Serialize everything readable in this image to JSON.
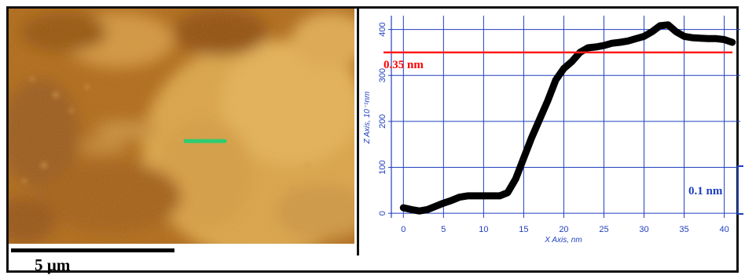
{
  "image": {
    "scale_bar_label": "5 µm",
    "line_color": "#2ecc71"
  },
  "chart_data": {
    "type": "line",
    "title": "",
    "xlabel": "X Axis, nm",
    "ylabel": "Z Axis, 10⁻¹nm",
    "xlim": [
      -1.5,
      42
    ],
    "ylim": [
      -10,
      430
    ],
    "x_ticks": [
      0,
      5,
      10,
      15,
      20,
      25,
      30,
      35,
      40
    ],
    "y_ticks": [
      0,
      100,
      200,
      300,
      400
    ],
    "grid": true,
    "series": [
      {
        "color": "#000000",
        "x": [
          0,
          1,
          2,
          3,
          4,
          5,
          6,
          7,
          8,
          9,
          10,
          11,
          12,
          13,
          14,
          15,
          16,
          17,
          18,
          19,
          20,
          21,
          22,
          23,
          24,
          25,
          26,
          27,
          28,
          29,
          30,
          31,
          32,
          33,
          34,
          35,
          36,
          37,
          38,
          39,
          40,
          41
        ],
        "y": [
          12,
          8,
          5,
          8,
          15,
          22,
          28,
          35,
          38,
          38,
          38,
          38,
          38,
          45,
          75,
          120,
          165,
          205,
          245,
          290,
          315,
          330,
          350,
          360,
          362,
          365,
          370,
          372,
          375,
          380,
          385,
          395,
          408,
          410,
          395,
          385,
          382,
          381,
          380,
          380,
          378,
          372
        ]
      }
    ],
    "annotations": [
      {
        "text": "0.35 nm",
        "y": 350,
        "color": "#ff0000"
      },
      {
        "text": "0.1 nm",
        "color": "#1f3fbf"
      }
    ]
  }
}
